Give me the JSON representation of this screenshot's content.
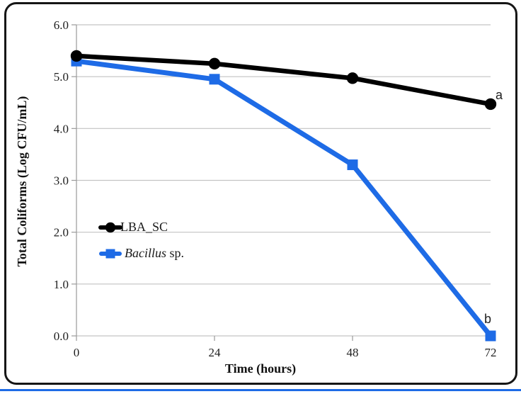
{
  "figure": {
    "border_color": "#161616",
    "background": "#ffffff",
    "bottom_rule_color": "#1e6be6",
    "gridline_color": "#c3c3c3",
    "axis_color": "#9a9a9a",
    "tick_text_color": "#1f1f1f"
  },
  "chart_data": {
    "type": "line",
    "title": "",
    "xlabel": "Time (hours)",
    "ylabel": "Total Coliforms (Log CFU/mL)",
    "x": [
      0,
      24,
      48,
      72
    ],
    "xtick_labels": [
      "0",
      "24",
      "48",
      "72"
    ],
    "ytick_values": [
      0,
      1,
      2,
      3,
      4,
      5,
      6
    ],
    "ytick_labels": [
      "0.0",
      "1.0",
      "2.0",
      "3.0",
      "4.0",
      "5.0",
      "6.0"
    ],
    "xlim": [
      0,
      72
    ],
    "ylim": [
      0,
      6
    ],
    "grid": "horizontal gridlines on",
    "legend_position": "inside left-center, no border",
    "series": [
      {
        "name": "LBA_SC",
        "color": "#000000",
        "marker": "circle",
        "values": [
          5.4,
          5.25,
          4.97,
          4.47
        ],
        "end_annotation": "a"
      },
      {
        "name": "Bacillus sp.",
        "color": "#1e6be6",
        "marker": "square",
        "values": [
          5.3,
          4.95,
          3.3,
          0.0
        ],
        "end_annotation": "b"
      }
    ]
  },
  "legend": {
    "items": [
      {
        "italic": "",
        "rest": "LBA_SC"
      },
      {
        "italic": "Bacillus",
        "rest": " sp."
      }
    ]
  }
}
